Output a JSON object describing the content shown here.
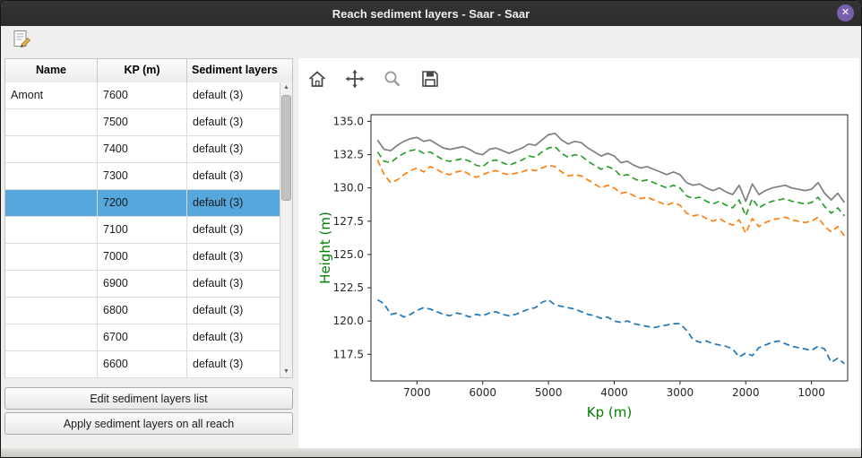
{
  "window": {
    "title": "Reach sediment layers - Saar - Saar",
    "close_glyph": "✕"
  },
  "main_toolbar": {
    "icons": [
      "edit-list-icon"
    ]
  },
  "table": {
    "headers": [
      "Name",
      "KP (m)",
      "Sediment layers"
    ],
    "rows": [
      {
        "name": "Amont",
        "kp": "7600",
        "layers": "default (3)",
        "selected": false
      },
      {
        "name": "",
        "kp": "7500",
        "layers": "default (3)",
        "selected": false
      },
      {
        "name": "",
        "kp": "7400",
        "layers": "default (3)",
        "selected": false
      },
      {
        "name": "",
        "kp": "7300",
        "layers": "default (3)",
        "selected": false
      },
      {
        "name": "",
        "kp": "7200",
        "layers": "default (3)",
        "selected": true
      },
      {
        "name": "",
        "kp": "7100",
        "layers": "default (3)",
        "selected": false
      },
      {
        "name": "",
        "kp": "7000",
        "layers": "default (3)",
        "selected": false
      },
      {
        "name": "",
        "kp": "6900",
        "layers": "default (3)",
        "selected": false
      },
      {
        "name": "",
        "kp": "6800",
        "layers": "default (3)",
        "selected": false
      },
      {
        "name": "",
        "kp": "6700",
        "layers": "default (3)",
        "selected": false
      },
      {
        "name": "",
        "kp": "6600",
        "layers": "default (3)",
        "selected": false
      }
    ]
  },
  "buttons": {
    "edit": "Edit sediment layers list",
    "apply": "Apply sediment layers on all reach"
  },
  "plot_toolbar": {
    "icons": [
      "home-icon",
      "pan-icon",
      "zoom-icon",
      "save-icon"
    ]
  },
  "chart_data": {
    "type": "line",
    "title": "",
    "xlabel": "Kp (m)",
    "ylabel": "Height (m)",
    "axis_label_color": "#008000",
    "tick_color": "#262626",
    "grid": false,
    "legend": "none",
    "x_inverted": true,
    "xlim": [
      7700,
      450
    ],
    "ylim": [
      115.5,
      135.5
    ],
    "xticks": [
      7000,
      6000,
      5000,
      4000,
      3000,
      2000,
      1000
    ],
    "yticks": [
      117.5,
      120.0,
      122.5,
      125.0,
      127.5,
      130.0,
      132.5,
      135.0
    ],
    "x": [
      7600,
      7500,
      7400,
      7300,
      7200,
      7100,
      7000,
      6900,
      6800,
      6700,
      6600,
      6500,
      6400,
      6300,
      6200,
      6100,
      6000,
      5900,
      5800,
      5700,
      5600,
      5500,
      5400,
      5300,
      5200,
      5100,
      5000,
      4900,
      4800,
      4700,
      4600,
      4500,
      4400,
      4300,
      4200,
      4100,
      4000,
      3900,
      3800,
      3700,
      3600,
      3500,
      3400,
      3300,
      3200,
      3100,
      3000,
      2900,
      2800,
      2700,
      2600,
      2500,
      2400,
      2300,
      2200,
      2100,
      2000,
      1900,
      1800,
      1700,
      1600,
      1500,
      1400,
      1300,
      1200,
      1100,
      1000,
      900,
      800,
      700,
      600,
      500
    ],
    "series": [
      {
        "name": "blue-dashed",
        "color": "#1f77b4",
        "style": "dashed",
        "width": 1.7,
        "values": [
          121.6,
          121.3,
          120.5,
          120.6,
          120.3,
          120.5,
          120.8,
          121.0,
          120.9,
          120.7,
          120.5,
          120.4,
          120.6,
          120.5,
          120.3,
          120.5,
          120.4,
          120.6,
          120.7,
          120.5,
          120.4,
          120.5,
          120.7,
          120.9,
          121.0,
          121.4,
          121.6,
          121.2,
          121.1,
          121.0,
          120.9,
          120.7,
          120.5,
          120.4,
          120.2,
          120.3,
          120.0,
          119.9,
          120.0,
          119.8,
          119.7,
          119.6,
          119.5,
          119.6,
          119.7,
          119.8,
          119.8,
          119.3,
          118.6,
          118.4,
          118.5,
          118.3,
          118.2,
          118.1,
          117.9,
          117.3,
          117.6,
          117.4,
          118.0,
          118.2,
          118.4,
          118.5,
          118.3,
          118.1,
          118.0,
          117.9,
          117.8,
          118.1,
          117.9,
          116.9,
          117.2,
          116.8
        ]
      },
      {
        "name": "orange-dashed",
        "color": "#ff7f0e",
        "style": "dashed",
        "width": 1.7,
        "values": [
          132.1,
          131.0,
          130.4,
          130.6,
          131.0,
          131.3,
          131.5,
          131.2,
          131.6,
          131.4,
          131.1,
          131.0,
          131.2,
          131.3,
          131.0,
          130.8,
          131.0,
          131.2,
          131.3,
          131.1,
          131.0,
          131.1,
          131.2,
          131.4,
          131.3,
          131.5,
          131.7,
          131.6,
          131.2,
          130.9,
          131.0,
          130.9,
          130.6,
          130.3,
          130.0,
          130.2,
          130.0,
          129.6,
          129.7,
          129.4,
          129.2,
          129.3,
          129.1,
          128.9,
          128.7,
          128.9,
          128.7,
          128.1,
          127.9,
          128.0,
          127.7,
          127.5,
          127.7,
          127.4,
          127.2,
          127.6,
          126.6,
          127.7,
          127.1,
          127.4,
          127.6,
          127.7,
          127.8,
          127.6,
          127.5,
          127.4,
          127.5,
          127.8,
          127.1,
          126.7,
          127.1,
          126.4
        ]
      },
      {
        "name": "green-dashed",
        "color": "#2ca02c",
        "style": "dashed",
        "width": 1.7,
        "values": [
          132.7,
          132.0,
          131.9,
          132.3,
          132.6,
          132.8,
          132.9,
          132.6,
          132.7,
          132.4,
          132.1,
          132.0,
          132.1,
          132.2,
          132.0,
          131.7,
          131.6,
          132.0,
          132.1,
          131.9,
          131.7,
          131.9,
          132.1,
          132.4,
          132.3,
          132.7,
          133.0,
          133.1,
          132.6,
          132.3,
          132.5,
          132.4,
          132.0,
          131.7,
          131.4,
          131.6,
          131.4,
          130.9,
          131.0,
          130.7,
          130.5,
          130.6,
          130.4,
          130.2,
          130.0,
          130.2,
          130.0,
          129.4,
          129.2,
          129.3,
          129.0,
          128.8,
          129.0,
          128.7,
          128.5,
          129.1,
          127.9,
          129.2,
          128.5,
          128.8,
          129.0,
          129.1,
          129.2,
          129.0,
          128.9,
          128.8,
          128.9,
          129.3,
          128.6,
          128.1,
          128.5,
          127.9
        ]
      },
      {
        "name": "gray-solid",
        "color": "#7f7f7f",
        "style": "solid",
        "width": 1.7,
        "values": [
          133.6,
          132.9,
          132.8,
          133.2,
          133.5,
          133.7,
          133.8,
          133.5,
          133.6,
          133.3,
          133.0,
          132.9,
          133.0,
          133.1,
          132.9,
          132.6,
          132.5,
          132.9,
          133.0,
          132.8,
          132.6,
          132.8,
          133.0,
          133.3,
          133.2,
          133.6,
          134.0,
          134.1,
          133.6,
          133.3,
          133.5,
          133.4,
          133.0,
          132.7,
          132.4,
          132.6,
          132.4,
          131.9,
          132.0,
          131.7,
          131.5,
          131.6,
          131.4,
          131.2,
          131.0,
          131.2,
          131.0,
          130.4,
          130.2,
          130.3,
          130.0,
          129.8,
          130.0,
          129.7,
          129.5,
          130.2,
          129.0,
          130.3,
          129.5,
          129.8,
          130.0,
          130.1,
          130.2,
          130.0,
          129.9,
          129.8,
          129.9,
          130.4,
          129.6,
          129.1,
          129.6,
          128.9
        ]
      }
    ]
  }
}
